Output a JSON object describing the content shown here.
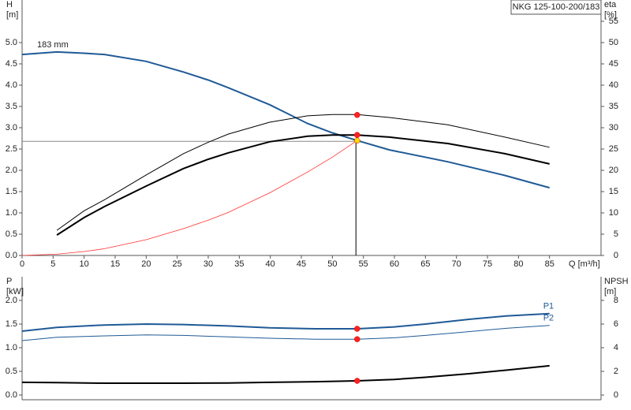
{
  "chart_data": [
    {
      "type": "line",
      "title": "NKG 125-100-200/183",
      "ylabel": "H",
      "yunit": "[m]",
      "y2label": "eta",
      "y2unit": "[%]",
      "xlabel": "Q [m³/h]",
      "annotation": "183 mm",
      "x": [
        0,
        5.6,
        10,
        13.3,
        20,
        26,
        30,
        33.2,
        39.9,
        46,
        50,
        54,
        59.2,
        68.6,
        77.8,
        85
      ],
      "series": [
        {
          "color": "#1f5a96",
          "width": 2,
          "values": [
            4.72,
            4.78,
            4.75,
            4.72,
            4.56,
            4.31,
            4.12,
            3.94,
            3.54,
            3.1,
            2.88,
            2.7,
            2.48,
            2.2,
            1.88,
            1.59
          ]
        },
        {
          "color": "#000000",
          "width": 1,
          "axis": "y2",
          "values": [
            null,
            5.9,
            10.5,
            13.1,
            18.9,
            23.9,
            26.6,
            28.5,
            31.3,
            32.8,
            33.1,
            33.1,
            32.4,
            30.7,
            27.8,
            25.4
          ]
        },
        {
          "color": "#000000",
          "width": 2,
          "axis": "y2",
          "values": [
            null,
            4.8,
            8.9,
            11.5,
            16.3,
            20.4,
            22.6,
            24.1,
            26.7,
            28,
            28.3,
            28.3,
            27.8,
            26.3,
            23.9,
            21.5
          ]
        },
        {
          "color": "#ff3030",
          "width": 0.8,
          "values": [
            0,
            0.029,
            0.093,
            0.16,
            0.37,
            0.63,
            0.83,
            1.01,
            1.47,
            1.96,
            2.31,
            2.7,
            null,
            null,
            null,
            null
          ]
        }
      ],
      "points": [
        {
          "x": 54,
          "y": 33.0,
          "axis": "y2",
          "color": "#ff2020"
        },
        {
          "x": 54,
          "y": 28.3,
          "axis": "y2",
          "color": "#ff2020"
        },
        {
          "x": 54,
          "y": 2.7,
          "color": "#ffd700"
        }
      ],
      "duty_point": {
        "x": 53.8,
        "y": 2.68
      },
      "xlim": [
        0,
        93.3
      ],
      "xticks": [
        0,
        5,
        10,
        15,
        20,
        25,
        30,
        35,
        40,
        45,
        50,
        55,
        60,
        65,
        70,
        75,
        80,
        85
      ],
      "ylim": [
        0,
        6.0
      ],
      "yticks": [
        {
          "value": 0,
          "label": "0.0"
        },
        {
          "value": 0.5,
          "label": "0.5"
        },
        {
          "value": 1,
          "label": "1.0"
        },
        {
          "value": 1.5,
          "label": "1.5"
        },
        {
          "value": 2,
          "label": "2.0"
        },
        {
          "value": 2.5,
          "label": "2.5"
        },
        {
          "value": 3,
          "label": "3.0"
        },
        {
          "value": 3.5,
          "label": "3.5"
        },
        {
          "value": 4,
          "label": "4.0"
        },
        {
          "value": 4.5,
          "label": "4.5"
        },
        {
          "value": 5,
          "label": "5.0"
        }
      ],
      "y2lim": [
        0,
        60
      ],
      "y2ticks": [
        0,
        5,
        10,
        15,
        20,
        25,
        30,
        35,
        40,
        45,
        50,
        55
      ]
    },
    {
      "type": "line",
      "ylabel": "P",
      "yunit": "[kW]",
      "y2label": "NPSH",
      "y2unit": "[m]",
      "x": [
        0,
        5.6,
        13.3,
        20,
        26,
        33.2,
        39.9,
        47.3,
        54,
        60,
        65,
        72,
        78,
        85
      ],
      "series": [
        {
          "name": "P1",
          "color": "#1f5a96",
          "width": 2,
          "values": [
            1.35,
            1.43,
            1.48,
            1.5,
            1.49,
            1.46,
            1.42,
            1.4,
            1.4,
            1.44,
            1.5,
            1.6,
            1.67,
            1.72
          ]
        },
        {
          "name": "P2",
          "color": "#1f5a96",
          "width": 1,
          "values": [
            1.15,
            1.22,
            1.25,
            1.27,
            1.26,
            1.23,
            1.2,
            1.18,
            1.18,
            1.21,
            1.26,
            1.34,
            1.41,
            1.47
          ]
        },
        {
          "color": "#000000",
          "width": 2,
          "axis": "y2",
          "values": [
            1.07,
            1.05,
            1.0,
            1.0,
            1.0,
            1.02,
            1.07,
            1.13,
            1.2,
            1.32,
            1.5,
            1.8,
            2.1,
            2.47
          ]
        }
      ],
      "points": [
        {
          "x": 54,
          "y": 1.4,
          "color": "#ff2020"
        },
        {
          "x": 54,
          "y": 1.18,
          "color": "#ff2020"
        },
        {
          "x": 54,
          "y": 1.2,
          "axis": "y2",
          "color": "#ff2020"
        }
      ],
      "xlim": [
        0,
        93.3
      ],
      "ylim": [
        -0.1,
        2.5
      ],
      "yticks": [
        {
          "value": 0,
          "label": "0.0"
        },
        {
          "value": 0.5,
          "label": "0.5"
        },
        {
          "value": 1,
          "label": "1.0"
        },
        {
          "value": 1.5,
          "label": "1.5"
        },
        {
          "value": 2,
          "label": "2.0"
        }
      ],
      "y2lim": [
        -0.4,
        10
      ],
      "y2ticks": [
        0,
        2,
        4,
        6,
        8
      ]
    }
  ]
}
